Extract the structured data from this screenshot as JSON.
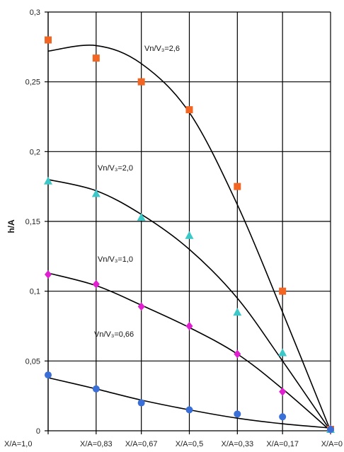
{
  "chart_data": {
    "type": "scatter",
    "title": "",
    "xlabel": "",
    "ylabel": "h/A",
    "ylim": [
      0,
      0.3
    ],
    "yticks": [
      0,
      0.05,
      0.1,
      0.15,
      0.2,
      0.25,
      0.3
    ],
    "ytick_labels": [
      "0",
      "0,05",
      "0,1",
      "0,15",
      "0,2",
      "0,25",
      "0,3"
    ],
    "categories": [
      "X/A=1,0",
      "X/A=0,83",
      "X/A=0,67",
      "X/A=0,5",
      "X/A=0,33",
      "X/A=0,17",
      "X/A=0"
    ],
    "x": [
      1.0,
      0.83,
      0.67,
      0.5,
      0.33,
      0.17,
      0
    ],
    "grid": {
      "vertical": true,
      "horizontal_at": [
        0.05,
        0.1,
        0.15,
        0.2,
        0.25,
        0.3
      ]
    },
    "series": [
      {
        "label": "Vn/V₃=2,6",
        "color": "#f26522",
        "marker": "square",
        "values": [
          0.28,
          0.267,
          0.25,
          0.23,
          0.175,
          0.1,
          0.001
        ],
        "fit": [
          0.272,
          0.276,
          0.263,
          0.228,
          0.162,
          0.085,
          0.0
        ]
      },
      {
        "label": "Vn/V₃=2,0",
        "color": "#3cc8c8",
        "marker": "triangle",
        "values": [
          0.179,
          0.17,
          0.153,
          0.14,
          0.085,
          0.056,
          0.001
        ],
        "fit": [
          0.18,
          0.172,
          0.155,
          0.13,
          0.095,
          0.05,
          0.0
        ]
      },
      {
        "label": "Vn/V₃=1,0",
        "color": "#e020d0",
        "marker": "diamond",
        "values": [
          0.112,
          0.105,
          0.089,
          0.075,
          0.055,
          0.028,
          0.001
        ],
        "fit": [
          0.113,
          0.104,
          0.09,
          0.074,
          0.055,
          0.03,
          0.0
        ]
      },
      {
        "label": "Vn/V₃=0,66",
        "color": "#3b6fd8",
        "marker": "circle",
        "values": [
          0.04,
          0.03,
          0.02,
          0.015,
          0.012,
          0.01,
          0.001
        ],
        "fit": [
          0.038,
          0.03,
          0.022,
          0.015,
          0.009,
          0.005,
          0.002
        ]
      }
    ]
  }
}
